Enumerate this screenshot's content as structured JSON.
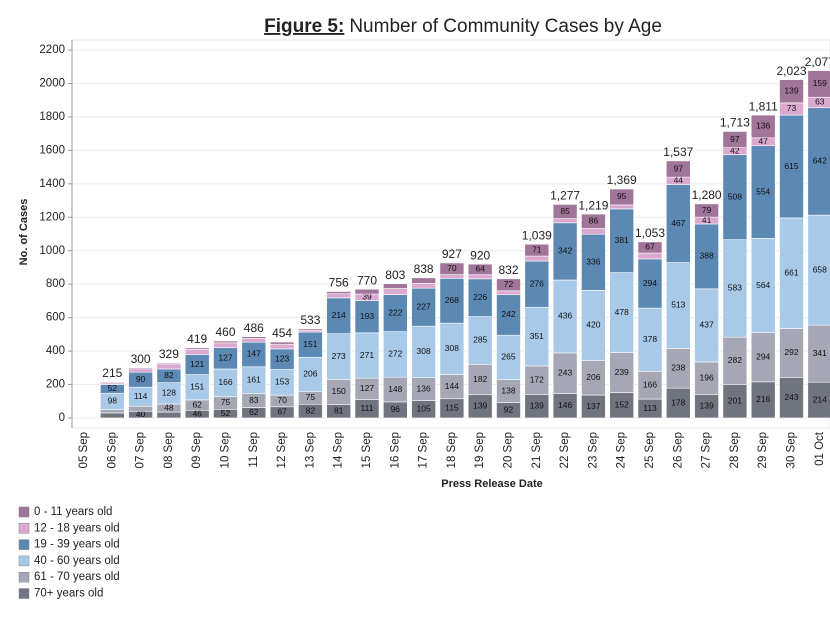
{
  "chart_data": {
    "type": "stacked_bar",
    "title": {
      "label": "Figure 5:",
      "text": "Number of Community Cases by Age"
    },
    "x_label": "Press Release Date",
    "y_label": "No. of Cases",
    "categories": [
      "05 Sep",
      "06 Sep",
      "07 Sep",
      "08 Sep",
      "09 Sep",
      "10 Sep",
      "11 Sep",
      "12 Sep",
      "13 Sep",
      "14 Sep",
      "15 Sep",
      "16 Sep",
      "17 Sep",
      "18 Sep",
      "19 Sep",
      "20 Sep",
      "21 Sep",
      "22 Sep",
      "23 Sep",
      "24 Sep",
      "25 Sep",
      "26 Sep",
      "27 Sep",
      "28 Sep",
      "29 Sep",
      "30 Sep",
      "01 Oct"
    ],
    "total_labels": [
      null,
      "215",
      "300",
      "329",
      "419",
      "460",
      "486",
      "454",
      "533",
      "756",
      "770",
      "803",
      "838",
      "927",
      "920",
      "832",
      "1,039",
      "1,277",
      "1,219",
      "1,369",
      "1,053",
      "1,537",
      "1,280",
      "1,713",
      "1,811",
      "2,023",
      "2,077"
    ],
    "series": [
      {
        "name": "0 - 11 years old",
        "color": "#a17499",
        "values": [
          null,
          5,
          6,
          6,
          9,
          11,
          11,
          13,
          8,
          13,
          29,
          29,
          33,
          70,
          64,
          72,
          71,
          85,
          86,
          95,
          67,
          97,
          79,
          97,
          136,
          139,
          159
        ]
      },
      {
        "name": "12 - 18 years old",
        "color": "#dba8d0",
        "values": [
          null,
          10,
          20,
          30,
          30,
          29,
          22,
          28,
          11,
          25,
          39,
          36,
          29,
          22,
          24,
          23,
          30,
          25,
          34,
          24,
          35,
          44,
          41,
          42,
          47,
          73,
          63
        ]
      },
      {
        "name": "19 - 39 years old",
        "color": "#5c89b3",
        "values": [
          null,
          52,
          90,
          82,
          121,
          127,
          147,
          123,
          151,
          214,
          193,
          222,
          227,
          268,
          226,
          242,
          276,
          342,
          336,
          381,
          294,
          467,
          388,
          508,
          554,
          615,
          642
        ]
      },
      {
        "name": "40 - 60 years old",
        "color": "#a9c9e9",
        "values": [
          null,
          98,
          114,
          128,
          151,
          166,
          161,
          153,
          206,
          273,
          271,
          272,
          308,
          308,
          285,
          265,
          351,
          436,
          420,
          478,
          378,
          513,
          437,
          583,
          564,
          661,
          658
        ]
      },
      {
        "name": "61 - 70 years old",
        "color": "#a5a8b4",
        "values": [
          null,
          20,
          30,
          48,
          62,
          75,
          83,
          70,
          75,
          150,
          127,
          148,
          136,
          144,
          182,
          138,
          172,
          243,
          206,
          239,
          166,
          238,
          196,
          282,
          294,
          292,
          341
        ]
      },
      {
        "name": "70+ years old",
        "color": "#6f747f",
        "values": [
          null,
          30,
          40,
          35,
          46,
          52,
          62,
          67,
          82,
          81,
          111,
          96,
          105,
          115,
          139,
          92,
          139,
          146,
          137,
          152,
          113,
          178,
          139,
          201,
          216,
          243,
          214
        ]
      }
    ],
    "ylim": [
      -60,
      2260
    ],
    "yticks": [
      0,
      200,
      400,
      600,
      800,
      1000,
      1200,
      1400,
      1600,
      1800,
      2000,
      2200
    ],
    "grid": true
  }
}
